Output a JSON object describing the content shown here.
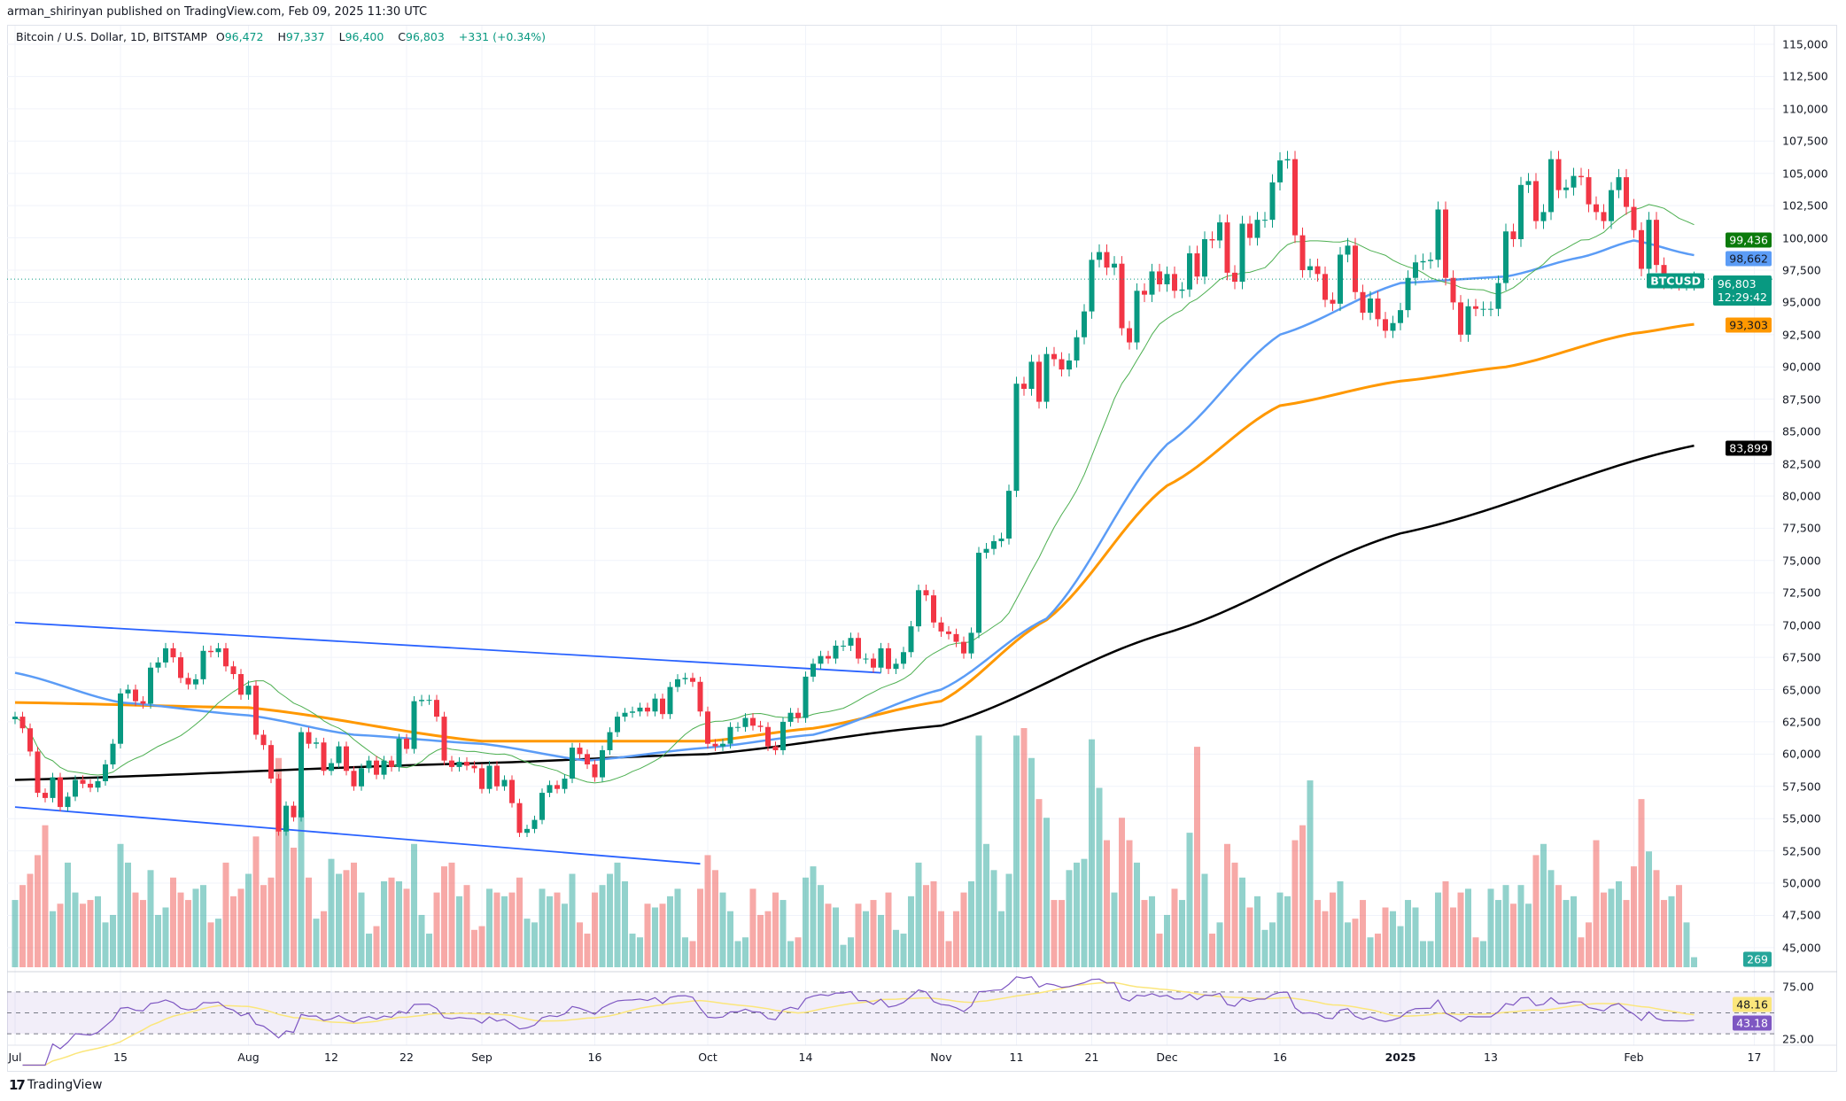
{
  "header": {
    "published": "arman_shirinyan published on TradingView.com, Feb 09, 2025 11:30 UTC"
  },
  "legend": {
    "symbol": "Bitcoin / U.S. Dollar, 1D, BITSTAMP",
    "o_label": "O",
    "o": "96,472",
    "h_label": "H",
    "h": "97,337",
    "l_label": "L",
    "l": "96,400",
    "c_label": "C",
    "c": "96,803",
    "change": "+331 (+0.34%)"
  },
  "badges": {
    "ma20": "99,436",
    "ma50": "98,662",
    "ticker": "BTCUSD",
    "last": "96,803",
    "countdown": "12:29:42",
    "ma100": "93,303",
    "ma200": "83,899",
    "volume": "269",
    "rsi_ma": "48.16",
    "rsi": "43.18"
  },
  "colors": {
    "up": "#089981",
    "down": "#f23645",
    "ma20": "#4caf50",
    "ma50": "#5b9cf6",
    "ma100": "#ff9800",
    "ma200": "#000000",
    "rsi": "#7e57c2",
    "rsi_ma": "#fbe67b",
    "channel": "#2962ff",
    "ma20_badge": "#0b7a0b"
  },
  "logo": {
    "text": "TradingView"
  },
  "chart_data": {
    "type": "candlestick",
    "title": "Bitcoin / U.S. Dollar, 1D, BITSTAMP",
    "y_ticks": [
      "115,000",
      "112,500",
      "110,000",
      "107,500",
      "105,000",
      "102,500",
      "100,000",
      "97,500",
      "95,000",
      "92,500",
      "90,000",
      "87,500",
      "85,000",
      "82,500",
      "80,000",
      "77,500",
      "75,000",
      "72,500",
      "70,000",
      "67,500",
      "65,000",
      "62,500",
      "60,000",
      "57,500",
      "55,000",
      "52,500",
      "50,000",
      "47,500",
      "45,000"
    ],
    "ylim": [
      45000,
      115000
    ],
    "x_ticks": [
      {
        "label": "Jul",
        "date": "2024-07-01"
      },
      {
        "label": "15",
        "date": "2024-07-15"
      },
      {
        "label": "Aug",
        "date": "2024-08-01"
      },
      {
        "label": "12",
        "date": "2024-08-12"
      },
      {
        "label": "22",
        "date": "2024-08-22"
      },
      {
        "label": "Sep",
        "date": "2024-09-01"
      },
      {
        "label": "16",
        "date": "2024-09-16"
      },
      {
        "label": "Oct",
        "date": "2024-10-01"
      },
      {
        "label": "14",
        "date": "2024-10-14"
      },
      {
        "label": "Nov",
        "date": "2024-11-01"
      },
      {
        "label": "11",
        "date": "2024-11-11"
      },
      {
        "label": "21",
        "date": "2024-11-21"
      },
      {
        "label": "Dec",
        "date": "2024-12-01"
      },
      {
        "label": "16",
        "date": "2024-12-16"
      },
      {
        "label": "2025",
        "date": "2025-01-01"
      },
      {
        "label": "13",
        "date": "2025-01-13"
      },
      {
        "label": "Feb",
        "date": "2025-02-01"
      },
      {
        "label": "17",
        "date": "2025-02-17"
      }
    ],
    "first_open": 62700,
    "closes": {
      "2024-07": [
        62900,
        62000,
        60200,
        57000,
        56600,
        58200,
        55900,
        56700,
        58000,
        57700,
        57400,
        57900,
        59200,
        60800,
        64700,
        65000,
        64100,
        63900,
        66700,
        67100,
        68200,
        67500,
        65900,
        65400,
        65800,
        68000,
        67900,
        68200,
        66800,
        66200,
        64600
      ],
      "2024-08": [
        65300,
        61500,
        60700,
        58100,
        54000,
        56000,
        55100,
        61700,
        60800,
        60900,
        58700,
        59300,
        60600,
        58700,
        57500,
        58900,
        59500,
        58400,
        59500,
        59000,
        61200,
        60400,
        64100,
        64200,
        64200,
        62900,
        59500,
        59000,
        59400,
        59100,
        58900
      ],
      "2024-09": [
        57300,
        59100,
        57500,
        58000,
        56200,
        53900,
        54200,
        54900,
        57000,
        57600,
        57300,
        58100,
        60500,
        60000,
        59200,
        58200,
        60300,
        61700,
        62900,
        63200,
        63300,
        63600,
        63300,
        64300,
        63100,
        65200,
        65800,
        65900,
        65600,
        63300
      ],
      "2024-10": [
        60800,
        60600,
        60800,
        62100,
        62100,
        62800,
        62200,
        62100,
        60600,
        60300,
        62500,
        63200,
        62800,
        66000,
        67000,
        67600,
        67400,
        68400,
        68400,
        69000,
        67400,
        67400,
        66700,
        68200,
        66600,
        67000,
        67900,
        69900,
        72700,
        72300,
        70200
      ],
      "2024-11": [
        69500,
        69300,
        68700,
        67800,
        69400,
        75600,
        75900,
        76500,
        76700,
        80400,
        88700,
        88300,
        90400,
        87300,
        91000,
        90600,
        89800,
        90500,
        92300,
        94300,
        98300,
        98900,
        97700,
        98000,
        93000,
        91900,
        95900,
        95600,
        97400,
        96400
      ],
      "2024-12": [
        97200,
        95900,
        96000,
        98800,
        97000,
        99900,
        99800,
        101200,
        97300,
        96600,
        101100,
        100000,
        101400,
        101400,
        104300,
        106000,
        106100,
        100200,
        97500,
        97800,
        97200,
        95200,
        94900,
        98700,
        99400,
        95800,
        94200,
        95300,
        93700,
        92800,
        93400
      ],
      "2025-01": [
        94400,
        96900,
        98100,
        98200,
        98300,
        102200,
        96900,
        95000,
        92500,
        94700,
        94500,
        94500,
        94500,
        96500,
        100500,
        99900,
        104100,
        104400,
        101300,
        102000,
        106100,
        103700,
        103900,
        104800,
        104700,
        102600,
        102000,
        101300,
        103700,
        104700,
        102400
      ],
      "2025-02": [
        100600,
        97600,
        101400,
        97900,
        96600,
        96600,
        96500,
        96500,
        96803
      ]
    },
    "volumes": {
      "2024-07": [
        1800,
        2200,
        2500,
        3000,
        3800,
        1500,
        1700,
        2800,
        2000,
        1700,
        1800,
        1900,
        1200,
        1400,
        3300,
        2800,
        2000,
        1800,
        2600,
        1400,
        1600,
        2400,
        2000,
        1800,
        2100,
        2200,
        1200,
        1300,
        2800,
        1900,
        2100
      ],
      "2024-08": [
        2500,
        3500,
        2200,
        2400,
        5600,
        3800,
        3200,
        4200,
        2400,
        1300,
        1500,
        2900,
        2500,
        2600,
        2800,
        2000,
        900,
        1100,
        2300,
        2400,
        2300,
        2100,
        3300,
        1400,
        900,
        2000,
        2700,
        2800,
        1900,
        2200,
        1000
      ],
      "2024-09": [
        1100,
        2100,
        2000,
        1900,
        2000,
        2400,
        1300,
        1200,
        2100,
        1900,
        2000,
        1700,
        2500,
        1200,
        900,
        2000,
        2200,
        2500,
        2800,
        2300,
        900,
        800,
        1700,
        1600,
        1700,
        1900,
        2100,
        800,
        700,
        2100
      ],
      "2024-10": [
        3000,
        2600,
        2000,
        1500,
        700,
        800,
        2100,
        1400,
        1500,
        2000,
        1800,
        700,
        800,
        2400,
        2700,
        2200,
        1700,
        1600,
        600,
        800,
        1700,
        1500,
        1800,
        1400,
        2000,
        1000,
        900,
        1900,
        2800,
        2200,
        2300
      ],
      "2024-11": [
        1500,
        700,
        1500,
        2000,
        2300,
        6200,
        3300,
        2600,
        1500,
        2500,
        6200,
        6400,
        5600,
        4500,
        4000,
        1800,
        1800,
        2600,
        2800,
        2900,
        6100,
        4800,
        3400,
        2000,
        4000,
        3400,
        2800,
        1800,
        1900,
        900
      ],
      "2024-12": [
        1400,
        2100,
        1800,
        3600,
        5900,
        2500,
        900,
        1200,
        3300,
        2800,
        2400,
        1600,
        1900,
        1000,
        1200,
        2000,
        1900,
        3400,
        3800,
        5000,
        1800,
        1500,
        2000,
        2300,
        1200,
        1300,
        1800,
        800,
        900,
        1600,
        1500
      ],
      "2025-01": [
        1100,
        1800,
        1600,
        700,
        700,
        2000,
        2300,
        1600,
        2000,
        2100,
        800,
        700,
        2100,
        1800,
        2200,
        1700,
        2200,
        1700,
        3000,
        3300,
        2600,
        2200,
        1800,
        1900,
        800,
        1200,
        3400,
        2000,
        2100,
        2300,
        1800
      ],
      "2025-02": [
        2700,
        4500,
        3100,
        2600,
        1800,
        1900,
        2200,
        1200,
        269
      ]
    },
    "moving_averages": {
      "ma50": [
        [
          "2024-07-01",
          66300
        ],
        [
          "2024-07-15",
          64000
        ],
        [
          "2024-08-01",
          63000
        ],
        [
          "2024-08-15",
          61500
        ],
        [
          "2024-09-01",
          60800
        ],
        [
          "2024-09-15",
          59500
        ],
        [
          "2024-10-01",
          60500
        ],
        [
          "2024-10-15",
          61500
        ],
        [
          "2024-11-01",
          65000
        ],
        [
          "2024-11-15",
          70500
        ],
        [
          "2024-12-01",
          84000
        ],
        [
          "2024-12-16",
          92500
        ],
        [
          "2025-01-01",
          96500
        ],
        [
          "2025-01-15",
          97000
        ],
        [
          "2025-01-25",
          98500
        ],
        [
          "2025-02-01",
          99800
        ],
        [
          "2025-02-09",
          98662
        ]
      ],
      "ma100": [
        [
          "2024-07-01",
          64000
        ],
        [
          "2024-08-01",
          63600
        ],
        [
          "2024-09-01",
          61000
        ],
        [
          "2024-10-01",
          61000
        ],
        [
          "2024-10-15",
          62000
        ],
        [
          "2024-11-01",
          64100
        ],
        [
          "2024-11-15",
          70400
        ],
        [
          "2024-12-01",
          80800
        ],
        [
          "2024-12-16",
          87000
        ],
        [
          "2025-01-01",
          88900
        ],
        [
          "2025-01-15",
          90000
        ],
        [
          "2025-02-01",
          92600
        ],
        [
          "2025-02-09",
          93303
        ]
      ],
      "ma200": [
        [
          "2024-07-01",
          58000
        ],
        [
          "2024-09-01",
          59300
        ],
        [
          "2024-10-01",
          60000
        ],
        [
          "2024-11-01",
          62200
        ],
        [
          "2024-12-01",
          69400
        ],
        [
          "2025-01-01",
          77100
        ],
        [
          "2025-02-09",
          83899
        ]
      ]
    },
    "trendlines": [
      [
        [
          "2024-07-01",
          70200
        ],
        [
          "2024-10-24",
          66300
        ]
      ],
      [
        [
          "2024-07-01",
          55900
        ],
        [
          "2024-09-30",
          51500
        ]
      ]
    ],
    "rsi": {
      "y_ticks": [
        "75.00",
        "25.00"
      ],
      "bands": [
        70,
        50,
        30
      ]
    },
    "grid": true
  }
}
